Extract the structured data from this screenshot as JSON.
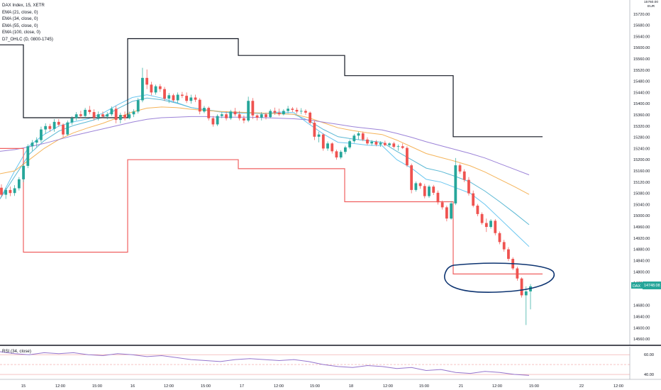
{
  "header": {
    "symbol_line": "DAX Index, 15, XETR",
    "indicators": [
      "EMA (21, close, 0)",
      "EMA (34, close, 0)",
      "EMA (55, close, 0)",
      "EMA (100, close, 0)",
      "D7_OHLC (D, 0800-1745)"
    ]
  },
  "price_axis": {
    "top_value": "15760.00",
    "currency": "EUR",
    "tick_labels": [
      "15720.00",
      "15680.00",
      "15640.00",
      "15600.00",
      "15560.00",
      "15520.00",
      "15480.00",
      "15440.00",
      "15400.00",
      "15360.00",
      "15320.00",
      "15280.00",
      "15240.00",
      "15200.00",
      "15160.00",
      "15120.00",
      "15080.00",
      "15040.00",
      "15000.00",
      "14960.00",
      "14920.00",
      "14880.00",
      "14840.00",
      "14800.00",
      "14760.00",
      "14680.00",
      "14640.00",
      "14600.00",
      "14560.00"
    ],
    "symbol_badge": "DAX",
    "last_price_label": "14748.08"
  },
  "time_axis": {
    "tick_labels": [
      "15",
      "12:00",
      "15:00",
      "16",
      "12:00",
      "15:00",
      "17",
      "12:00",
      "15:00",
      "18",
      "12:00",
      "15:00",
      "21",
      "12:00",
      "15:00",
      "22",
      "12:00"
    ]
  },
  "rsi_panel": {
    "label": "RSI (34, close)",
    "tick_labels": [
      "60.00",
      "40.00"
    ],
    "levels": [
      60,
      50,
      40
    ],
    "ylim": [
      35,
      68
    ]
  },
  "colors": {
    "up": "#26a69a",
    "down": "#ef5350",
    "ema21": "#69c6f0",
    "ema34": "#5bb8d4",
    "ema55": "#f5b45a",
    "ema100": "#9c83d8",
    "daily_high": "#131722",
    "daily_low": "#f06060",
    "annotation": "#0d3471",
    "rsi": "#9575cd",
    "rsi_level": "#f0a0a0"
  },
  "chart_data": {
    "type": "candlestick",
    "ylim": [
      14540,
      15770
    ],
    "x_tick_labels": [
      "15",
      "12:00",
      "15:00",
      "16",
      "12:00",
      "15:00",
      "17",
      "12:00",
      "15:00",
      "18",
      "12:00",
      "15:00",
      "21",
      "12:00",
      "15:00",
      "22",
      "12:00"
    ],
    "candles": [
      [
        15100,
        15112,
        15068,
        15075
      ],
      [
        15075,
        15100,
        15060,
        15092
      ],
      [
        15092,
        15104,
        15070,
        15081
      ],
      [
        15081,
        15109,
        15071,
        15098
      ],
      [
        15098,
        15138,
        15090,
        15130
      ],
      [
        15130,
        15185,
        15120,
        15178
      ],
      [
        15178,
        15255,
        15170,
        15248
      ],
      [
        15248,
        15270,
        15232,
        15261
      ],
      [
        15261,
        15280,
        15245,
        15270
      ],
      [
        15270,
        15318,
        15262,
        15308
      ],
      [
        15308,
        15330,
        15292,
        15320
      ],
      [
        15320,
        15328,
        15300,
        15310
      ],
      [
        15310,
        15345,
        15300,
        15335
      ],
      [
        15335,
        15345,
        15318,
        15325
      ],
      [
        15325,
        15330,
        15280,
        15290
      ],
      [
        15290,
        15340,
        15285,
        15333
      ],
      [
        15333,
        15355,
        15325,
        15348
      ],
      [
        15348,
        15370,
        15340,
        15362
      ],
      [
        15362,
        15375,
        15348,
        15356
      ],
      [
        15356,
        15385,
        15350,
        15378
      ],
      [
        15378,
        15392,
        15362,
        15370
      ],
      [
        15370,
        15380,
        15340,
        15350
      ],
      [
        15350,
        15372,
        15340,
        15362
      ],
      [
        15362,
        15372,
        15348,
        15354
      ],
      [
        15354,
        15370,
        15344,
        15362
      ],
      [
        15362,
        15390,
        15356,
        15382
      ],
      [
        15382,
        15392,
        15330,
        15342
      ],
      [
        15342,
        15368,
        15330,
        15360
      ],
      [
        15360,
        15372,
        15340,
        15348
      ],
      [
        15348,
        15372,
        15344,
        15362
      ],
      [
        15362,
        15380,
        15352,
        15372
      ],
      [
        15372,
        15420,
        15365,
        15412
      ],
      [
        15412,
        15528,
        15405,
        15492
      ],
      [
        15492,
        15522,
        15452,
        15468
      ],
      [
        15468,
        15478,
        15430,
        15440
      ],
      [
        15440,
        15468,
        15432,
        15462
      ],
      [
        15462,
        15470,
        15442,
        15452
      ],
      [
        15452,
        15460,
        15410,
        15418
      ],
      [
        15418,
        15438,
        15402,
        15430
      ],
      [
        15430,
        15436,
        15406,
        15412
      ],
      [
        15412,
        15440,
        15402,
        15432
      ],
      [
        15432,
        15442,
        15420,
        15428
      ],
      [
        15428,
        15440,
        15402,
        15410
      ],
      [
        15410,
        15432,
        15400,
        15422
      ],
      [
        15422,
        15432,
        15406,
        15414
      ],
      [
        15414,
        15420,
        15362,
        15372
      ],
      [
        15372,
        15392,
        15366,
        15385
      ],
      [
        15385,
        15390,
        15340,
        15348
      ],
      [
        15348,
        15356,
        15318,
        15326
      ],
      [
        15326,
        15362,
        15320,
        15356
      ],
      [
        15356,
        15370,
        15348,
        15362
      ],
      [
        15362,
        15372,
        15340,
        15348
      ],
      [
        15348,
        15378,
        15342,
        15372
      ],
      [
        15372,
        15385,
        15355,
        15362
      ],
      [
        15362,
        15374,
        15340,
        15348
      ],
      [
        15348,
        15358,
        15330,
        15340
      ],
      [
        15340,
        15425,
        15334,
        15410
      ],
      [
        15410,
        15420,
        15345,
        15358
      ],
      [
        15358,
        15362,
        15340,
        15350
      ],
      [
        15350,
        15370,
        15340,
        15362
      ],
      [
        15362,
        15368,
        15344,
        15352
      ],
      [
        15352,
        15380,
        15348,
        15374
      ],
      [
        15374,
        15386,
        15360,
        15368
      ],
      [
        15368,
        15382,
        15356,
        15362
      ],
      [
        15362,
        15380,
        15358,
        15374
      ],
      [
        15374,
        15392,
        15366,
        15382
      ],
      [
        15382,
        15388,
        15370,
        15378
      ],
      [
        15378,
        15386,
        15364,
        15372
      ],
      [
        15372,
        15384,
        15362,
        15374
      ],
      [
        15374,
        15380,
        15360,
        15368
      ],
      [
        15368,
        15372,
        15326,
        15332
      ],
      [
        15332,
        15340,
        15270,
        15282
      ],
      [
        15282,
        15300,
        15262,
        15290
      ],
      [
        15290,
        15294,
        15232,
        15240
      ],
      [
        15240,
        15265,
        15232,
        15258
      ],
      [
        15258,
        15262,
        15222,
        15230
      ],
      [
        15230,
        15236,
        15200,
        15208
      ],
      [
        15208,
        15234,
        15202,
        15228
      ],
      [
        15228,
        15250,
        15220,
        15244
      ],
      [
        15244,
        15272,
        15238,
        15266
      ],
      [
        15266,
        15292,
        15260,
        15286
      ],
      [
        15286,
        15300,
        15272,
        15294
      ],
      [
        15294,
        15300,
        15266,
        15272
      ],
      [
        15272,
        15280,
        15252,
        15258
      ],
      [
        15258,
        15270,
        15250,
        15264
      ],
      [
        15264,
        15270,
        15248,
        15254
      ],
      [
        15254,
        15266,
        15246,
        15260
      ],
      [
        15260,
        15268,
        15248,
        15252
      ],
      [
        15252,
        15262,
        15246,
        15258
      ],
      [
        15258,
        15264,
        15240,
        15246
      ],
      [
        15246,
        15254,
        15232,
        15248
      ],
      [
        15248,
        15258,
        15238,
        15242
      ],
      [
        15242,
        15248,
        15174,
        15180
      ],
      [
        15180,
        15186,
        15080,
        15092
      ],
      [
        15092,
        15122,
        15086,
        15116
      ],
      [
        15116,
        15120,
        15096,
        15106
      ],
      [
        15106,
        15114,
        15062,
        15070
      ],
      [
        15070,
        15110,
        15064,
        15104
      ],
      [
        15104,
        15110,
        15074,
        15082
      ],
      [
        15082,
        15090,
        15040,
        15048
      ],
      [
        15048,
        15054,
        15022,
        15030
      ],
      [
        15030,
        15036,
        14980,
        14990
      ],
      [
        14990,
        15052,
        14986,
        15044
      ],
      [
        15044,
        15206,
        15038,
        15180
      ],
      [
        15180,
        15186,
        15150,
        15158
      ],
      [
        15158,
        15166,
        15120,
        15128
      ],
      [
        15128,
        15138,
        15072,
        15080
      ],
      [
        15080,
        15090,
        15030,
        15036
      ],
      [
        15036,
        15042,
        14998,
        15006
      ],
      [
        15006,
        15012,
        14968,
        14974
      ],
      [
        14974,
        14990,
        14942,
        14960
      ],
      [
        14960,
        14988,
        14954,
        14982
      ],
      [
        14982,
        14988,
        14930,
        14938
      ],
      [
        14938,
        14944,
        14898,
        14906
      ],
      [
        14906,
        14914,
        14872,
        14880
      ],
      [
        14880,
        14888,
        14838,
        14846
      ],
      [
        14846,
        14852,
        14806,
        14812
      ],
      [
        14812,
        14818,
        14768,
        14776
      ],
      [
        14776,
        14780,
        14708,
        14716
      ],
      [
        14716,
        14748,
        14610,
        14730
      ],
      [
        14730,
        14756,
        14666,
        14748
      ]
    ],
    "series": [
      {
        "name": "EMA (21, close, 0)",
        "color_key": "ema21",
        "values": [
          15060,
          15160,
          15250,
          15290,
          15320,
          15335,
          15346,
          15366,
          15396,
          15422,
          15432,
          15420,
          15404,
          15386,
          15378,
          15370,
          15366,
          15366,
          15364,
          15370,
          15368,
          15328,
          15292,
          15262,
          15258,
          15252,
          15250,
          15200,
          15170,
          15130,
          15120,
          15100,
          15080,
          15040,
          14990,
          14940,
          14890
        ]
      },
      {
        "name": "EMA (34, close, 0)",
        "color_key": "ema34",
        "values": [
          15060,
          15140,
          15220,
          15268,
          15302,
          15322,
          15336,
          15352,
          15382,
          15408,
          15420,
          15414,
          15402,
          15386,
          15378,
          15372,
          15368,
          15368,
          15366,
          15366,
          15362,
          15340,
          15308,
          15282,
          15274,
          15268,
          15262,
          15230,
          15200,
          15170,
          15158,
          15140,
          15120,
          15088,
          15050,
          15010,
          14968
        ]
      },
      {
        "name": "EMA (55, close, 0)",
        "color_key": "ema55",
        "values": [
          15150,
          15160,
          15200,
          15240,
          15272,
          15296,
          15314,
          15330,
          15350,
          15370,
          15384,
          15388,
          15386,
          15380,
          15376,
          15372,
          15370,
          15368,
          15366,
          15364,
          15362,
          15350,
          15332,
          15314,
          15304,
          15296,
          15290,
          15270,
          15246,
          15222,
          15208,
          15194,
          15178,
          15156,
          15130,
          15104,
          15076
        ]
      },
      {
        "name": "EMA (100, close, 0)",
        "color_key": "ema100",
        "values": [
          15230,
          15236,
          15246,
          15258,
          15272,
          15286,
          15298,
          15310,
          15322,
          15334,
          15344,
          15350,
          15352,
          15354,
          15354,
          15352,
          15352,
          15352,
          15350,
          15348,
          15346,
          15342,
          15334,
          15326,
          15318,
          15312,
          15306,
          15294,
          15280,
          15264,
          15250,
          15236,
          15222,
          15206,
          15186,
          15166,
          15146
        ]
      }
    ],
    "daily_high": [
      [
        0,
        15610
      ],
      [
        11,
        15610
      ],
      [
        11,
        15350
      ],
      [
        60,
        15350
      ],
      [
        60,
        15632
      ],
      [
        112,
        15632
      ],
      [
        112,
        15572
      ],
      [
        162,
        15572
      ],
      [
        162,
        15500
      ],
      [
        213,
        15500
      ],
      [
        213,
        15282
      ],
      [
        255,
        15282
      ]
    ],
    "daily_low": [
      [
        0,
        15240
      ],
      [
        11,
        15240
      ],
      [
        11,
        14870
      ],
      [
        60,
        14870
      ],
      [
        60,
        15200
      ],
      [
        112,
        15200
      ],
      [
        112,
        15168
      ],
      [
        162,
        15168
      ],
      [
        162,
        15050
      ],
      [
        213,
        15050
      ],
      [
        213,
        14792
      ],
      [
        255,
        14792
      ]
    ],
    "rsi": [
      63,
      61,
      60,
      62,
      61,
      62,
      60,
      59,
      61,
      60,
      58,
      59,
      57,
      55,
      54,
      53,
      55,
      56,
      55,
      54,
      55,
      53,
      50,
      48,
      47,
      49,
      48,
      46,
      47,
      44,
      45,
      42,
      41,
      43,
      42,
      40,
      39
    ]
  }
}
